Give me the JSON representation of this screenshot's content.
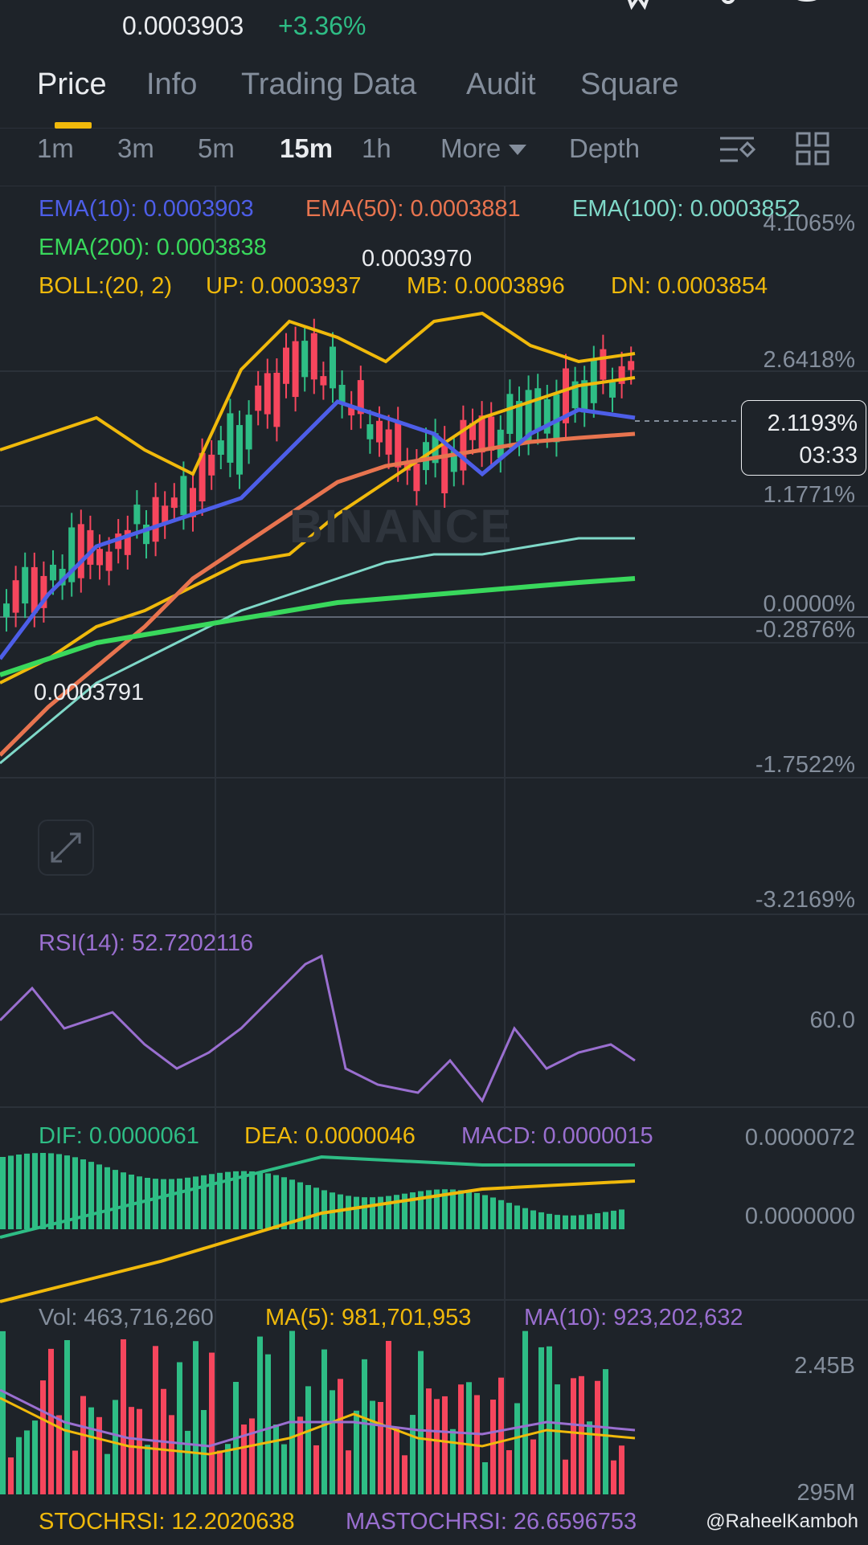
{
  "header": {
    "last_price": "0.0003903",
    "change_pct": "+3.36%"
  },
  "tabs": [
    {
      "label": "Price",
      "active": true
    },
    {
      "label": "Info",
      "active": false
    },
    {
      "label": "Trading Data",
      "active": false
    },
    {
      "label": "Audit",
      "active": false
    },
    {
      "label": "Square",
      "active": false
    }
  ],
  "intervals": {
    "items": [
      "1m",
      "3m",
      "5m",
      "15m",
      "1h"
    ],
    "active": "15m",
    "more_label": "More",
    "depth_label": "Depth"
  },
  "indicators": {
    "ema10": "EMA(10): 0.0003903",
    "ema50": "EMA(50): 0.0003881",
    "ema100": "EMA(100): 0.0003852",
    "ema200": "EMA(200): 0.0003838",
    "boll": "BOLL:(20, 2)",
    "boll_up": "UP: 0.0003937",
    "boll_mb": "MB: 0.0003896",
    "boll_dn": "DN: 0.0003854",
    "high_marker": "0.0003970",
    "low_marker": "0.0003791",
    "current_pct": "2.1193%",
    "countdown": "03:33",
    "watermark": "BINANCE"
  },
  "price_axis": [
    "4.1065%",
    "2.6418%",
    "1.1771%",
    "0.0000%",
    "-0.2876%",
    "-1.7522%",
    "-3.2169%"
  ],
  "rsi": {
    "label": "RSI(14): 52.7202116",
    "axis": "60.0"
  },
  "macd": {
    "dif": "DIF: 0.0000061",
    "dea": "DEA: 0.0000046",
    "macd": "MACD: 0.0000015",
    "axis_top": "0.0000072",
    "axis_zero": "0.0000000"
  },
  "volume": {
    "vol": "Vol: 463,716,260",
    "ma5": "MA(5): 981,701,953",
    "ma10": "MA(10): 923,202,632",
    "axis_top": "2.45B",
    "axis_bottom": "295M"
  },
  "stochrsi": {
    "stoch": "STOCHRSI: 12.2020638",
    "mastoch": "MASTOCHRSI: 26.6596753"
  },
  "credit": "@RaheelKamboh",
  "colors": {
    "up": "#2ebd85",
    "down": "#f6465d",
    "ema10": "#4d5ee8",
    "ema50": "#e8744f",
    "ema100": "#7fd8c8",
    "ema200": "#39d85c",
    "boll": "#f0b90b",
    "purple": "#9a6fd0"
  }
}
